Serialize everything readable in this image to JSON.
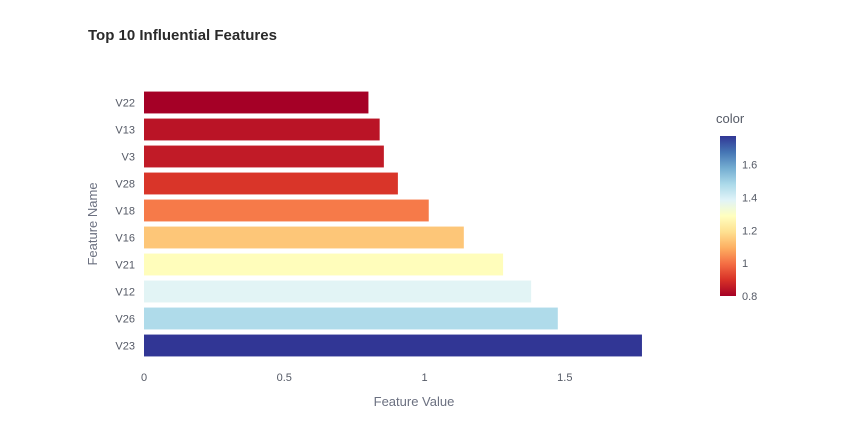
{
  "chart_data": {
    "type": "bar",
    "orientation": "horizontal",
    "title": "Top 10 Influential Features",
    "xlabel": "Feature Value",
    "ylabel": "Feature Name",
    "categories": [
      "V22",
      "V13",
      "V3",
      "V28",
      "V18",
      "V16",
      "V21",
      "V12",
      "V26",
      "V23"
    ],
    "values": [
      0.8,
      0.84,
      0.855,
      0.905,
      1.015,
      1.14,
      1.28,
      1.38,
      1.475,
      1.775
    ],
    "xlim": [
      0,
      1.85
    ],
    "xticks": [
      "0",
      "0.5",
      "1",
      "1.5"
    ],
    "xtick_values": [
      0,
      0.5,
      1,
      1.5
    ],
    "grid": false,
    "colorbar": {
      "title": "color",
      "range": [
        0.8,
        1.775
      ],
      "ticks": [
        "0.8",
        "1",
        "1.2",
        "1.4",
        "1.6"
      ],
      "tick_values": [
        0.8,
        1.0,
        1.2,
        1.4,
        1.6
      ],
      "colorscale": [
        "#a50026",
        "#d73027",
        "#f46d43",
        "#fdae61",
        "#fee090",
        "#ffffbf",
        "#e0f3f8",
        "#abd9e9",
        "#74add1",
        "#4575b4",
        "#313695"
      ],
      "placement": "right"
    }
  }
}
